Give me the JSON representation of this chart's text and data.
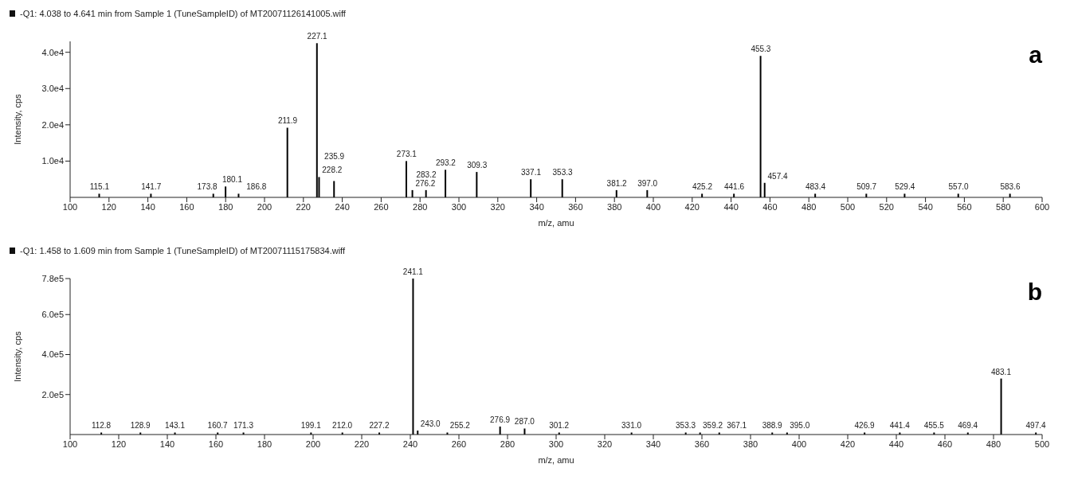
{
  "chart_data": [
    {
      "type": "bar",
      "title": "-Q1: 4.038 to 4.641 min from Sample 1 (TuneSampleID) of MT20071126141005.wiff",
      "xlabel": "m/z, amu",
      "ylabel": "Intensity, cps",
      "x": [
        115.1,
        141.7,
        173.8,
        180.1,
        186.8,
        211.9,
        227.1,
        228.2,
        235.9,
        273.1,
        276.2,
        283.2,
        293.2,
        309.3,
        337.1,
        353.3,
        381.2,
        397.0,
        425.2,
        441.6,
        455.3,
        457.4,
        483.4,
        509.7,
        529.4,
        557.0,
        583.6
      ],
      "series": [
        {
          "color": "#000000",
          "values": [
            1000,
            1000,
            1000,
            3000,
            1000,
            19200,
            42500,
            5600,
            4500,
            10000,
            2000,
            2000,
            7600,
            7000,
            5000,
            5000,
            2000,
            2000,
            1000,
            1000,
            39000,
            4000,
            1000,
            1000,
            1000,
            1000,
            1000
          ]
        }
      ],
      "xlim": [
        100,
        600
      ],
      "xticks": [
        100,
        120,
        140,
        160,
        180,
        200,
        220,
        240,
        260,
        280,
        300,
        320,
        340,
        360,
        380,
        400,
        420,
        440,
        460,
        480,
        500,
        520,
        540,
        560,
        580,
        600
      ],
      "ylim": [
        0,
        43000
      ],
      "yticks": [
        {
          "value": 10000,
          "label": "1.0e4"
        },
        {
          "value": 20000,
          "label": "2.0e4"
        },
        {
          "value": 30000,
          "label": "3.0e4"
        },
        {
          "value": 40000,
          "label": "4.0e4"
        }
      ],
      "annotations": [
        "a",
        {
          "text": "115.1",
          "x": 115.1,
          "y": 1000
        },
        {
          "text": "141.7",
          "x": 141.7,
          "y": 1000
        },
        {
          "text": "173.8",
          "x": 173.8,
          "y": 1000
        },
        {
          "text": "180.1",
          "x": 180.1,
          "y": 3000
        },
        {
          "text": "186.8",
          "x": 186.8,
          "y": 1000
        },
        {
          "text": "211.9",
          "x": 211.9,
          "y": 19200
        },
        {
          "text": "227.1",
          "x": 227.1,
          "y": 42500
        },
        {
          "text": "228.2",
          "x": 228.2,
          "y": 5600
        },
        {
          "text": "235.9",
          "x": 235.9,
          "y": 4500
        },
        {
          "text": "276.2",
          "x": 276.2,
          "y": 2000
        },
        {
          "text": "273.1",
          "x": 273.1,
          "y": 10000
        },
        {
          "text": "283.2",
          "x": 283.2,
          "y": 2000
        },
        {
          "text": "293.2",
          "x": 293.2,
          "y": 7600
        },
        {
          "text": "309.3",
          "x": 309.3,
          "y": 7000
        },
        {
          "text": "337.1",
          "x": 337.1,
          "y": 5000
        },
        {
          "text": "353.3",
          "x": 353.3,
          "y": 5000
        },
        {
          "text": "381.2",
          "x": 381.2,
          "y": 2000
        },
        {
          "text": "397.0",
          "x": 397.0,
          "y": 2000
        },
        {
          "text": "425.2",
          "x": 425.2,
          "y": 1000
        },
        {
          "text": "441.6",
          "x": 441.6,
          "y": 1000
        },
        {
          "text": "455.3",
          "x": 455.3,
          "y": 39000
        },
        {
          "text": "457.4",
          "x": 457.4,
          "y": 4000
        },
        {
          "text": "483.4",
          "x": 483.4,
          "y": 1000
        },
        {
          "text": "509.7",
          "x": 509.7,
          "y": 1000
        },
        {
          "text": "529.4",
          "x": 529.4,
          "y": 1000
        },
        {
          "text": "557.0",
          "x": 557.0,
          "y": 1000
        },
        {
          "text": "583.6",
          "x": 583.6,
          "y": 1000
        }
      ]
    },
    {
      "type": "bar",
      "title": "-Q1: 1.458 to 1.609 min from Sample 1 (TuneSampleID) of MT20071115175834.wiff",
      "xlabel": "m/z, amu",
      "ylabel": "Intensity, cps",
      "x": [
        112.8,
        128.9,
        143.1,
        160.7,
        171.3,
        199.1,
        212.0,
        227.2,
        241.1,
        243.0,
        255.2,
        276.9,
        287.0,
        301.2,
        331.0,
        353.3,
        359.2,
        367.1,
        388.9,
        395.0,
        426.9,
        441.4,
        455.5,
        469.4,
        483.1,
        497.4
      ],
      "series": [
        {
          "color": "#000000",
          "values": [
            10000,
            10000,
            10000,
            10000,
            10000,
            10000,
            10000,
            10000,
            780000,
            20000,
            10000,
            40000,
            30000,
            10000,
            10000,
            10000,
            10000,
            10000,
            10000,
            10000,
            10000,
            10000,
            10000,
            10000,
            280000,
            10000
          ]
        }
      ],
      "xlim": [
        100,
        500
      ],
      "xticks": [
        100,
        120,
        140,
        160,
        180,
        200,
        220,
        240,
        260,
        280,
        300,
        320,
        340,
        360,
        380,
        400,
        420,
        440,
        460,
        480,
        500
      ],
      "ylim": [
        0,
        780000
      ],
      "yticks": [
        {
          "value": 200000,
          "label": "2.0e5"
        },
        {
          "value": 400000,
          "label": "4.0e5"
        },
        {
          "value": 600000,
          "label": "6.0e5"
        },
        {
          "value": 780000,
          "label": "7.8e5"
        }
      ],
      "annotations": [
        "b",
        {
          "text": "112.8",
          "x": 112.8,
          "y": 10000
        },
        {
          "text": "128.9",
          "x": 128.9,
          "y": 10000
        },
        {
          "text": "143.1",
          "x": 143.1,
          "y": 10000
        },
        {
          "text": "160.7",
          "x": 160.7,
          "y": 10000
        },
        {
          "text": "171.3",
          "x": 171.3,
          "y": 10000
        },
        {
          "text": "199.1",
          "x": 199.1,
          "y": 10000
        },
        {
          "text": "212.0",
          "x": 212.0,
          "y": 10000
        },
        {
          "text": "227.2",
          "x": 227.2,
          "y": 10000
        },
        {
          "text": "241.1",
          "x": 241.1,
          "y": 780000
        },
        {
          "text": "243.0",
          "x": 243.0,
          "y": 20000
        },
        {
          "text": "255.2",
          "x": 255.2,
          "y": 10000
        },
        {
          "text": "276.9",
          "x": 276.9,
          "y": 40000
        },
        {
          "text": "287.0",
          "x": 287.0,
          "y": 30000
        },
        {
          "text": "301.2",
          "x": 301.2,
          "y": 10000
        },
        {
          "text": "331.0",
          "x": 331.0,
          "y": 10000
        },
        {
          "text": "353.3",
          "x": 353.3,
          "y": 10000
        },
        {
          "text": "359.2",
          "x": 359.2,
          "y": 10000
        },
        {
          "text": "367.1",
          "x": 367.1,
          "y": 10000
        },
        {
          "text": "388.9",
          "x": 388.9,
          "y": 10000
        },
        {
          "text": "395.0",
          "x": 395.0,
          "y": 10000
        },
        {
          "text": "426.9",
          "x": 426.9,
          "y": 10000
        },
        {
          "text": "441.4",
          "x": 441.4,
          "y": 10000
        },
        {
          "text": "455.5",
          "x": 455.5,
          "y": 10000
        },
        {
          "text": "469.4",
          "x": 469.4,
          "y": 10000
        },
        {
          "text": "483.1",
          "x": 483.1,
          "y": 280000
        },
        {
          "text": "497.4",
          "x": 497.4,
          "y": 10000
        }
      ]
    }
  ]
}
